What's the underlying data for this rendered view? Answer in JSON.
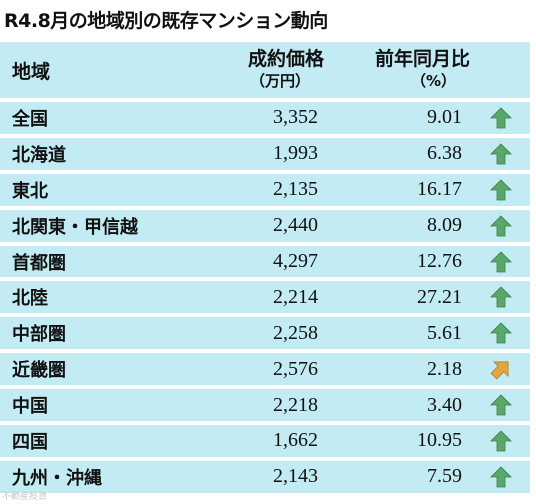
{
  "title": "R4.8月の地域別の既存マンション動向",
  "header": {
    "area": "地域",
    "price": "成約価格",
    "price_unit": "（万円）",
    "change": "前年同月比",
    "change_unit": "（%）"
  },
  "rows": [
    {
      "area": "全国",
      "price": "3,352",
      "change": "9.01",
      "trend": "up",
      "trend_icon": "up-arrow-icon"
    },
    {
      "area": "北海道",
      "price": "1,993",
      "change": "6.38",
      "trend": "up",
      "trend_icon": "up-arrow-icon"
    },
    {
      "area": "東北",
      "price": "2,135",
      "change": "16.17",
      "trend": "up",
      "trend_icon": "up-arrow-icon"
    },
    {
      "area": "北関東・甲信越",
      "price": "2,440",
      "change": "8.09",
      "trend": "up",
      "trend_icon": "up-arrow-icon"
    },
    {
      "area": "首都圏",
      "price": "4,297",
      "change": "12.76",
      "trend": "up",
      "trend_icon": "up-arrow-icon"
    },
    {
      "area": "北陸",
      "price": "2,214",
      "change": "27.21",
      "trend": "up",
      "trend_icon": "up-arrow-icon"
    },
    {
      "area": "中部圏",
      "price": "2,258",
      "change": "5.61",
      "trend": "up",
      "trend_icon": "up-arrow-icon"
    },
    {
      "area": "近畿圏",
      "price": "2,576",
      "change": "2.18",
      "trend": "slight-up",
      "trend_icon": "diagonal-up-arrow-icon"
    },
    {
      "area": "中国",
      "price": "2,218",
      "change": "3.40",
      "trend": "up",
      "trend_icon": "up-arrow-icon"
    },
    {
      "area": "四国",
      "price": "1,662",
      "change": "10.95",
      "trend": "up",
      "trend_icon": "up-arrow-icon"
    },
    {
      "area": "九州・沖縄",
      "price": "2,143",
      "change": "7.59",
      "trend": "up",
      "trend_icon": "up-arrow-icon"
    }
  ],
  "colors": {
    "row_background": "#c3ebf4",
    "up_arrow": "#5aa869",
    "slight_up_arrow": "#e0a844"
  },
  "watermark": "不動産投資"
}
